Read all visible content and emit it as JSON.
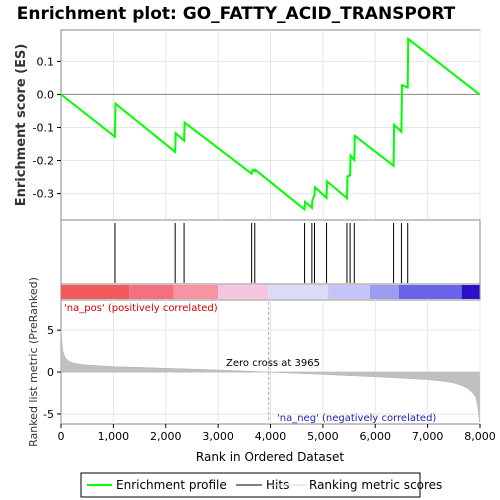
{
  "chart_data": {
    "type": "line",
    "title": "Enrichment plot: GO_FATTY_ACID_TRANSPORT",
    "xlabel": "Rank in Ordered Dataset",
    "es_ylabel": "Enrichment score (ES)",
    "metric_ylabel": "Ranked list metric (PreRanked)",
    "xlim": [
      0,
      8000
    ],
    "x_ticks": [
      0,
      1000,
      2000,
      3000,
      4000,
      5000,
      6000,
      7000,
      8000
    ],
    "x_tick_labels": [
      "0",
      "1,000",
      "2,000",
      "3,000",
      "4,000",
      "5,000",
      "6,000",
      "7,000",
      "8,000"
    ],
    "es_ylim": [
      -0.38,
      0.195
    ],
    "es_ticks": [
      0.1,
      0.0,
      -0.1,
      -0.2,
      -0.3
    ],
    "es_tick_labels": [
      "0.1",
      "0.0",
      "-0.1",
      "-0.2",
      "-0.3"
    ],
    "metric_ylim": [
      -6.2,
      8.6
    ],
    "metric_ticks": [
      5,
      0,
      -5
    ],
    "metric_tick_labels": [
      "5",
      "0",
      "-5"
    ],
    "enrichment_profile": {
      "x": [
        0,
        1030,
        1040,
        2180,
        2190,
        2350,
        2360,
        3640,
        3660,
        3700,
        3710,
        4650,
        4660,
        4790,
        4800,
        4840,
        4850,
        5070,
        5080,
        5460,
        5470,
        5520,
        5530,
        5600,
        5610,
        6350,
        6360,
        6500,
        6510,
        6620,
        6630,
        7990
      ],
      "y": [
        0.0,
        -0.128,
        -0.028,
        -0.174,
        -0.117,
        -0.14,
        -0.085,
        -0.24,
        -0.228,
        -0.232,
        -0.228,
        -0.348,
        -0.325,
        -0.343,
        -0.32,
        -0.304,
        -0.281,
        -0.313,
        -0.263,
        -0.314,
        -0.248,
        -0.245,
        -0.185,
        -0.198,
        -0.125,
        -0.216,
        -0.092,
        -0.113,
        0.028,
        0.021,
        0.168,
        0.0
      ]
    },
    "hits": [
      1030,
      2180,
      2350,
      3640,
      3700,
      4650,
      4790,
      4840,
      5070,
      5460,
      5520,
      5600,
      6350,
      6500,
      6620
    ],
    "zero_cross": 3965,
    "zero_cross_label": "Zero cross at 3965",
    "pos_label": "'na_pos' (positively correlated)",
    "neg_label": "'na_neg' (negatively correlated)",
    "heatmap_bands": [
      {
        "from": 0,
        "to": 1300,
        "color": "#f45a5a"
      },
      {
        "from": 1300,
        "to": 2150,
        "color": "#f5707f"
      },
      {
        "from": 2150,
        "to": 3000,
        "color": "#f694a3"
      },
      {
        "from": 3000,
        "to": 3950,
        "color": "#f6c4de"
      },
      {
        "from": 3950,
        "to": 5100,
        "color": "#dcdcf6"
      },
      {
        "from": 5100,
        "to": 5900,
        "color": "#c4c4f6"
      },
      {
        "from": 5900,
        "to": 6450,
        "color": "#9e9cf0"
      },
      {
        "from": 6450,
        "to": 7650,
        "color": "#6a62e8"
      },
      {
        "from": 7650,
        "to": 7990,
        "color": "#2c10c8"
      }
    ],
    "metric_curve": {
      "x": [
        0,
        30,
        80,
        150,
        250,
        400,
        600,
        1000,
        1500,
        2000,
        2500,
        3000,
        3500,
        3965,
        4500,
        5000,
        5500,
        6000,
        6500,
        7000,
        7300,
        7500,
        7650,
        7750,
        7850,
        7920,
        7960,
        7990
      ],
      "y": [
        5.0,
        2.6,
        1.7,
        1.3,
        1.05,
        0.9,
        0.8,
        0.65,
        0.55,
        0.45,
        0.35,
        0.24,
        0.12,
        0.0,
        -0.15,
        -0.28,
        -0.42,
        -0.56,
        -0.72,
        -0.9,
        -1.1,
        -1.3,
        -1.6,
        -1.9,
        -2.4,
        -3.0,
        -4.2,
        -6.0
      ]
    },
    "legend": [
      {
        "label": "Enrichment profile",
        "color": "#00ff00"
      },
      {
        "label": "Hits",
        "color": "#000000"
      },
      {
        "label": "Ranking metric scores",
        "color": "#c0c0c0"
      }
    ],
    "colors": {
      "profile": "#00ff00",
      "hits": "#000000",
      "metric": "#c0c0c0",
      "frame": "#888888",
      "grid": "#e6e6e6",
      "zero_line": "#aaaaaa"
    }
  }
}
